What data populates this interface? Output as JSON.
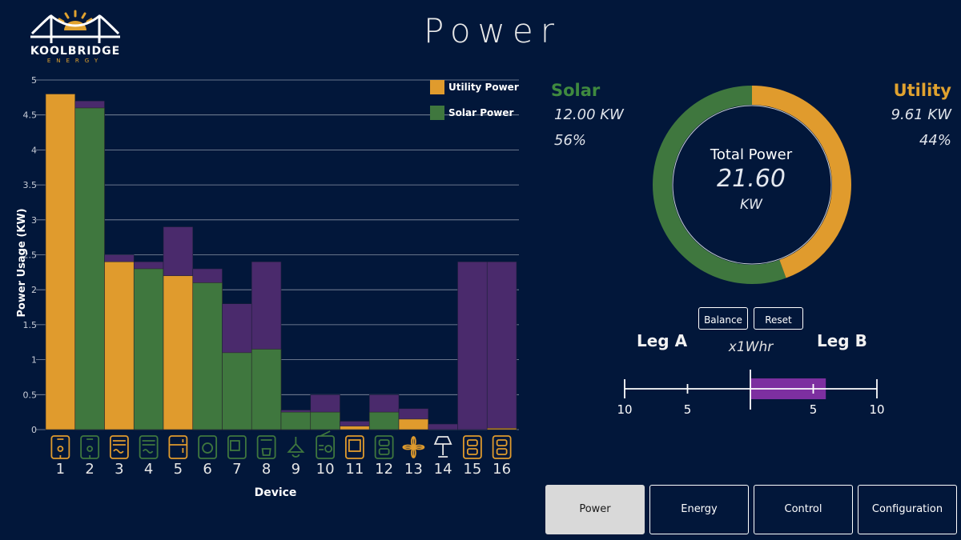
{
  "logo": {
    "name": "KOOLBRIDGE",
    "sub": "ENERGY"
  },
  "page": {
    "title": "Power"
  },
  "colors": {
    "utility": "#e09b2d",
    "solar": "#3f773e",
    "other": "#4a2a6c",
    "background": "#02173a"
  },
  "chart_data": {
    "type": "bar",
    "xlabel": "Device",
    "ylabel": "Power Usage (KW)",
    "ylim": [
      0,
      5
    ],
    "yticks": [
      "0",
      "0.5",
      "1",
      "1.5",
      "2",
      "2.5",
      "3",
      "3.5",
      "4",
      "4.5",
      "5"
    ],
    "categories": [
      "1",
      "2",
      "3",
      "4",
      "5",
      "6",
      "7",
      "8",
      "9",
      "10",
      "11",
      "12",
      "13",
      "14",
      "15",
      "16"
    ],
    "device_icons": [
      "water-heater-icon",
      "water-heater-icon",
      "air-conditioner-icon",
      "air-conditioner-icon",
      "refrigerator-icon",
      "washer-icon",
      "microwave-icon",
      "coffee-maker-icon",
      "ceiling-light-icon",
      "radio-icon",
      "television-icon",
      "outlet-icon",
      "fan-icon",
      "lamp-icon",
      "outlet-icon",
      "outlet-icon"
    ],
    "icon_colors": [
      "utility",
      "solar",
      "utility",
      "solar",
      "utility",
      "solar",
      "solar",
      "solar",
      "solar",
      "solar",
      "utility",
      "solar",
      "utility",
      "white",
      "utility",
      "utility"
    ],
    "series": [
      {
        "name": "Utility Power",
        "color": "#e09b2d",
        "values": [
          4.8,
          0,
          2.4,
          0,
          2.2,
          0,
          0,
          0,
          0,
          0,
          0.05,
          0,
          0.15,
          0,
          0,
          0.02
        ]
      },
      {
        "name": "Solar Power",
        "color": "#3f773e",
        "values": [
          0,
          4.6,
          0,
          2.3,
          0,
          2.1,
          1.1,
          1.15,
          0.25,
          0.25,
          0,
          0.25,
          0,
          0,
          0,
          0
        ]
      }
    ],
    "totals": [
      4.8,
      4.7,
      2.5,
      2.4,
      2.9,
      2.3,
      1.8,
      2.4,
      0.28,
      0.5,
      0.12,
      0.5,
      0.3,
      0.08,
      2.4,
      2.4
    ],
    "legend": [
      "Utility Power",
      "Solar Power"
    ],
    "legend_position": "top-right",
    "grid": true
  },
  "summary": {
    "solar": {
      "label": "Solar",
      "kw": "12.00 KW",
      "pct": "56%",
      "fraction": 0.556
    },
    "utility": {
      "label": "Utility",
      "kw": "9.61 KW",
      "pct": "44%",
      "fraction": 0.444
    },
    "total": {
      "label": "Total Power",
      "value": "21.60",
      "unit": "KW"
    }
  },
  "leg": {
    "balance_label": "Balance",
    "reset_label": "Reset",
    "a_label": "Leg A",
    "b_label": "Leg B",
    "unit": "x1Whr",
    "scale_labels": [
      "10",
      "5",
      "5",
      "10"
    ],
    "bar_value": 6,
    "bar_max": 10
  },
  "nav": [
    {
      "label": "Power",
      "active": true
    },
    {
      "label": "Energy",
      "active": false
    },
    {
      "label": "Control",
      "active": false
    },
    {
      "label": "Configuration",
      "active": false
    }
  ]
}
